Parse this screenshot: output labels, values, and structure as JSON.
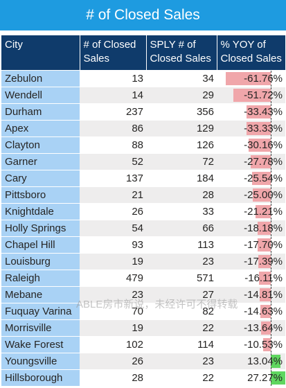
{
  "title": "# of Closed Sales",
  "columns": [
    "City",
    "# of Closed Sales",
    "SPLY # of Closed Sales",
    "% YOY of Closed Sales"
  ],
  "colors": {
    "title_bg": "#1e9be0",
    "header_bg": "#0f3b6b",
    "city_bg": "#a9d2f5",
    "neg_bar": "#f0a6aa",
    "pos_bar": "#5fd65f"
  },
  "rows": [
    {
      "city": "Zebulon",
      "closed": "13",
      "sply": "34",
      "yoy": "-61.76%",
      "yoy_value": -61.76
    },
    {
      "city": "Wendell",
      "closed": "14",
      "sply": "29",
      "yoy": "-51.72%",
      "yoy_value": -51.72
    },
    {
      "city": "Durham",
      "closed": "237",
      "sply": "356",
      "yoy": "-33.43%",
      "yoy_value": -33.43
    },
    {
      "city": "Apex",
      "closed": "86",
      "sply": "129",
      "yoy": "-33.33%",
      "yoy_value": -33.33
    },
    {
      "city": "Clayton",
      "closed": "88",
      "sply": "126",
      "yoy": "-30.16%",
      "yoy_value": -30.16
    },
    {
      "city": "Garner",
      "closed": "52",
      "sply": "72",
      "yoy": "-27.78%",
      "yoy_value": -27.78
    },
    {
      "city": "Cary",
      "closed": "137",
      "sply": "184",
      "yoy": "-25.54%",
      "yoy_value": -25.54
    },
    {
      "city": "Pittsboro",
      "closed": "21",
      "sply": "28",
      "yoy": "-25.00%",
      "yoy_value": -25.0
    },
    {
      "city": "Knightdale",
      "closed": "26",
      "sply": "33",
      "yoy": "-21.21%",
      "yoy_value": -21.21
    },
    {
      "city": "Holly Springs",
      "closed": "54",
      "sply": "66",
      "yoy": "-18.18%",
      "yoy_value": -18.18
    },
    {
      "city": "Chapel Hill",
      "closed": "93",
      "sply": "113",
      "yoy": "-17.70%",
      "yoy_value": -17.7
    },
    {
      "city": "Louisburg",
      "closed": "19",
      "sply": "23",
      "yoy": "-17.39%",
      "yoy_value": -17.39
    },
    {
      "city": "Raleigh",
      "closed": "479",
      "sply": "571",
      "yoy": "-16.11%",
      "yoy_value": -16.11
    },
    {
      "city": "Mebane",
      "closed": "23",
      "sply": "27",
      "yoy": "-14.81%",
      "yoy_value": -14.81
    },
    {
      "city": "Fuquay Varina",
      "closed": "70",
      "sply": "82",
      "yoy": "-14.63%",
      "yoy_value": -14.63
    },
    {
      "city": "Morrisville",
      "closed": "19",
      "sply": "22",
      "yoy": "-13.64%",
      "yoy_value": -13.64
    },
    {
      "city": "Wake Forest",
      "closed": "102",
      "sply": "114",
      "yoy": "-10.53%",
      "yoy_value": -10.53
    },
    {
      "city": "Youngsville",
      "closed": "26",
      "sply": "23",
      "yoy": "13.04%",
      "yoy_value": 13.04
    },
    {
      "city": "Hillsborough",
      "closed": "28",
      "sply": "22",
      "yoy": "27.27%",
      "yoy_value": 27.27
    }
  ],
  "watermark": "ABLE房市新说，未经许可不得转载"
}
